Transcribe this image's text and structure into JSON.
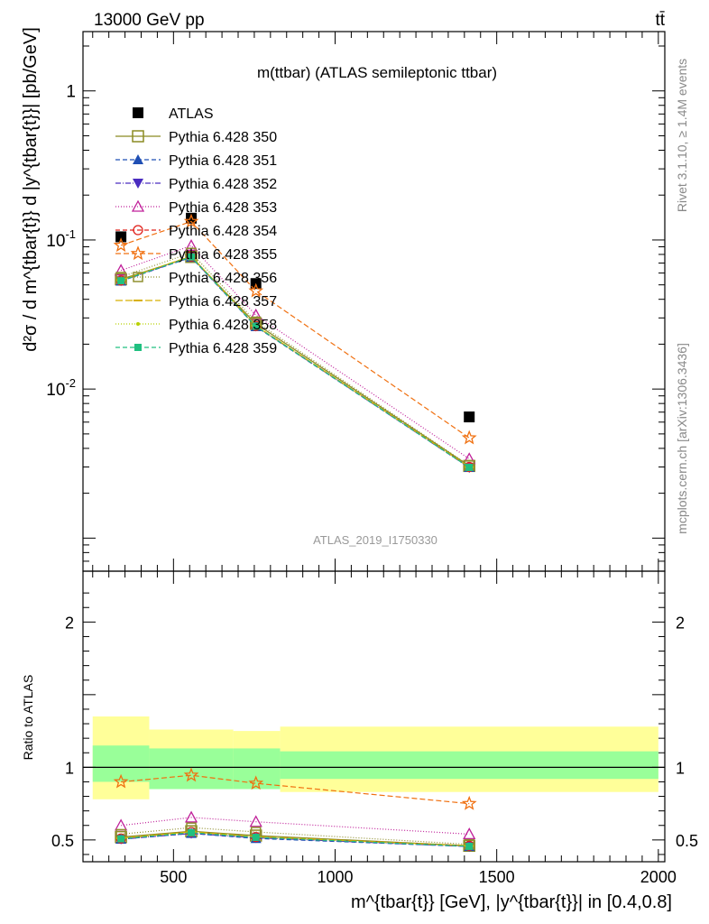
{
  "header": {
    "left": "13000 GeV pp",
    "right": "tt̄"
  },
  "side": {
    "rivet": "Rivet 3.1.10, ≥ 1.4M events",
    "mcplots": "mcplots.cern.ch [arXiv:1306.3436]"
  },
  "watermark": "ATLAS_2019_I1750330",
  "top_title": "m(ttbar) (ATLAS semileptonic ttbar)",
  "colors": {
    "ATLAS": "#000000",
    "Pythia 6.428 350": "#8b8b22",
    "Pythia 6.428 351": "#1f4fb4",
    "Pythia 6.428 352": "#4a2cc0",
    "Pythia 6.428 353": "#c0209a",
    "Pythia 6.428 354": "#e0201a",
    "Pythia 6.428 355": "#f07010",
    "Pythia 6.428 356": "#909030",
    "Pythia 6.428 357": "#d8b000",
    "Pythia 6.428 358": "#b8d000",
    "Pythia 6.428 359": "#20c080",
    "band_inner": "#99ff99",
    "band_outer": "#ffff99"
  },
  "chart_data": [
    {
      "type": "line",
      "title": "m(ttbar) (ATLAS semileptonic ttbar)",
      "yscale": "log",
      "ylabel": "d²σ / d m^{tbar{t}} d |y^{tbar{t}}| [pb/GeV]",
      "xlim": [
        220,
        2020
      ],
      "ylim": [
        0.0006,
        2.5
      ],
      "yticks": [
        {
          "v": 1,
          "label": "1"
        },
        {
          "v": 0.1,
          "label": "10^-1"
        },
        {
          "v": 0.01,
          "label": "10^-2"
        }
      ],
      "x": [
        337.5,
        555,
        755,
        1415
      ],
      "legend_position": "top-left",
      "series": [
        {
          "name": "ATLAS",
          "values": [
            0.105,
            0.14,
            0.051,
            0.0065
          ]
        },
        {
          "name": "Pythia 6.428 350",
          "values": [
            0.0545,
            0.077,
            0.0274,
            0.00305
          ]
        },
        {
          "name": "Pythia 6.428 351",
          "values": [
            0.053,
            0.0765,
            0.0262,
            0.00298
          ]
        },
        {
          "name": "Pythia 6.428 352",
          "values": [
            0.0532,
            0.0768,
            0.0264,
            0.00297
          ]
        },
        {
          "name": "Pythia 6.428 353",
          "values": [
            0.0625,
            0.0915,
            0.0313,
            0.0034
          ]
        },
        {
          "name": "Pythia 6.428 354",
          "values": [
            0.0535,
            0.0775,
            0.0265,
            0.003
          ]
        },
        {
          "name": "Pythia 6.428 355",
          "values": [
            0.092,
            0.133,
            0.0455,
            0.0047
          ]
        },
        {
          "name": "Pythia 6.428 356",
          "values": [
            0.0565,
            0.082,
            0.0283,
            0.00307
          ]
        },
        {
          "name": "Pythia 6.428 357",
          "values": [
            0.0538,
            0.078,
            0.0266,
            0.003
          ]
        },
        {
          "name": "Pythia 6.428 358",
          "values": [
            0.0536,
            0.0778,
            0.0265,
            0.003
          ]
        },
        {
          "name": "Pythia 6.428 359",
          "values": [
            0.0533,
            0.077,
            0.0264,
            0.00298
          ]
        }
      ]
    },
    {
      "type": "line",
      "ylabel": "Ratio to ATLAS",
      "xlabel": "m^{tbar{t}} [GeV], |y^{tbar{t}}| in [0.4,0.8]",
      "xlim": [
        220,
        2020
      ],
      "ylim": [
        0.35,
        2.35
      ],
      "xticks": [
        500,
        1000,
        1500,
        2000
      ],
      "yticks": [
        0.5,
        1,
        2
      ],
      "x": [
        337.5,
        555,
        755,
        1415
      ],
      "bands": [
        {
          "x": [
            250,
            425
          ],
          "inner": [
            0.9,
            1.15
          ],
          "outer": [
            0.78,
            1.35
          ]
        },
        {
          "x": [
            425,
            685
          ],
          "inner": [
            0.85,
            1.13
          ],
          "outer": [
            0.85,
            1.26
          ]
        },
        {
          "x": [
            685,
            830
          ],
          "inner": [
            0.85,
            1.13
          ],
          "outer": [
            0.85,
            1.25
          ]
        },
        {
          "x": [
            830,
            2000
          ],
          "inner": [
            0.92,
            1.11
          ],
          "outer": [
            0.83,
            1.28
          ]
        }
      ],
      "series": [
        {
          "name": "Pythia 6.428 350",
          "values": [
            0.52,
            0.56,
            0.53,
            0.46
          ]
        },
        {
          "name": "Pythia 6.428 351",
          "values": [
            0.505,
            0.545,
            0.51,
            0.455
          ]
        },
        {
          "name": "Pythia 6.428 352",
          "values": [
            0.505,
            0.545,
            0.515,
            0.455
          ]
        },
        {
          "name": "Pythia 6.428 353",
          "values": [
            0.6,
            0.655,
            0.625,
            0.54
          ]
        },
        {
          "name": "Pythia 6.428 354",
          "values": [
            0.51,
            0.555,
            0.52,
            0.46
          ]
        },
        {
          "name": "Pythia 6.428 355",
          "values": [
            0.9,
            0.945,
            0.89,
            0.75
          ]
        },
        {
          "name": "Pythia 6.428 356",
          "values": [
            0.54,
            0.585,
            0.555,
            0.47
          ]
        },
        {
          "name": "Pythia 6.428 357",
          "values": [
            0.512,
            0.556,
            0.522,
            0.46
          ]
        },
        {
          "name": "Pythia 6.428 358",
          "values": [
            0.51,
            0.553,
            0.52,
            0.458
          ]
        },
        {
          "name": "Pythia 6.428 359",
          "values": [
            0.508,
            0.55,
            0.518,
            0.456
          ]
        }
      ]
    }
  ]
}
